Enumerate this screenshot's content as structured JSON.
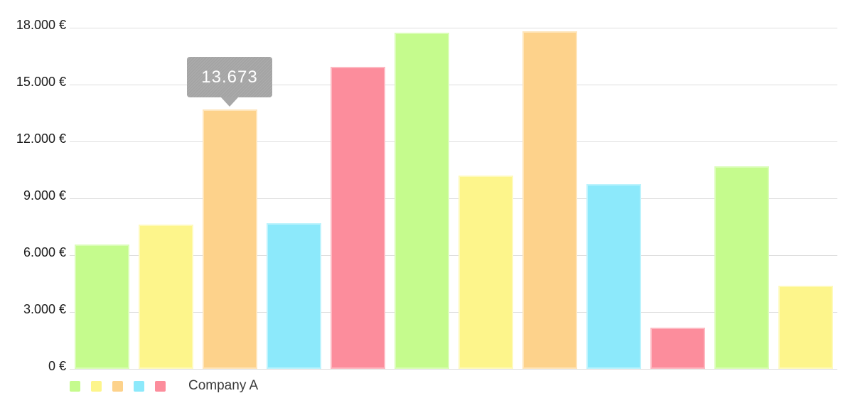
{
  "chart_data": {
    "type": "bar",
    "title": "",
    "series": [
      {
        "name": "Company A",
        "values": [
          6580,
          7600,
          13673,
          7700,
          15950,
          17730,
          10200,
          17820,
          9760,
          2170,
          10700,
          4400
        ]
      }
    ],
    "ylim": [
      0,
      18000
    ],
    "y_ticks": [
      {
        "value": 0,
        "label": "0 €"
      },
      {
        "value": 3000,
        "label": "3.000 €"
      },
      {
        "value": 6000,
        "label": "6.000 €"
      },
      {
        "value": 9000,
        "label": "9.000 €"
      },
      {
        "value": 12000,
        "label": "12.000 €"
      },
      {
        "value": 15000,
        "label": "15.000 €"
      },
      {
        "value": 18000,
        "label": "18.000 €"
      }
    ],
    "grid": true,
    "x_axis_labels": [],
    "bar_fill_cycle": [
      "#c5fb8d",
      "#fdf58b",
      "#fdd28b",
      "#8ce9fb",
      "#fc8d9c"
    ],
    "bar_border_cycle": [
      "#dafdb7",
      "#fefabc",
      "#fee5bb",
      "#bcf3fd",
      "#fdb9c2"
    ],
    "legend": {
      "position": "bottom-left",
      "swatch_colors": [
        "#c5fb8d",
        "#fdf58b",
        "#fdd28b",
        "#8ce9fb",
        "#fc8d9c"
      ],
      "label": "Company A"
    },
    "tooltip": {
      "bar_index": 2,
      "value_label": "13.673",
      "bg_color": "#a8a8a8",
      "text_color": "#ffffff"
    }
  },
  "colors": {
    "background": "#ffffff",
    "gridline": "#dedede",
    "axis_text": "#1c1c1c",
    "legend_text": "#3a3a3a"
  }
}
